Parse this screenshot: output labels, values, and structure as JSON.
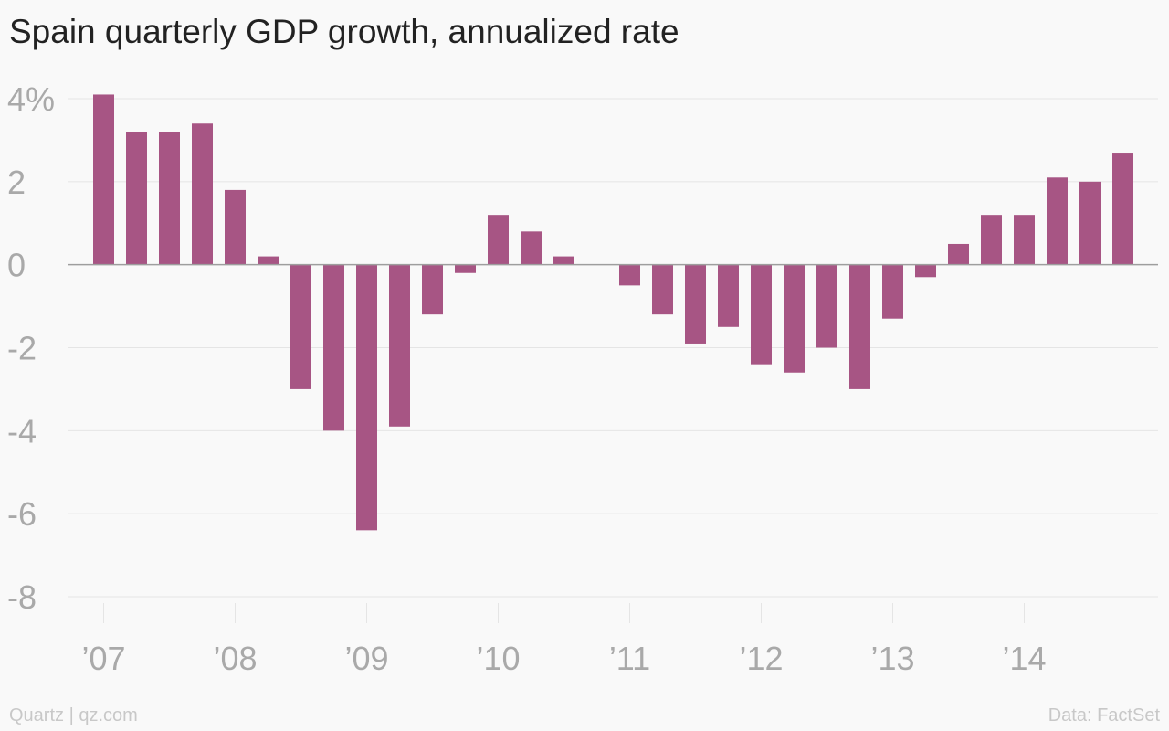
{
  "title": "Spain quarterly GDP growth, annualized rate",
  "source_left": "Quartz | qz.com",
  "source_right": "Data: FactSet",
  "colors": {
    "bar": "#a75584",
    "grid": "#e5e5e5",
    "zero_line": "#9e9e9e",
    "tick_label": "#a9a9a9",
    "title": "#222222",
    "background": "#f9f9f9"
  },
  "chart_data": {
    "type": "bar",
    "title": "Spain quarterly GDP growth, annualized rate",
    "xlabel": "",
    "ylabel": "",
    "ylim": [
      -8,
      4
    ],
    "y_ticks": [
      {
        "value": 4,
        "label": "4%"
      },
      {
        "value": 2,
        "label": "2"
      },
      {
        "value": 0,
        "label": "0"
      },
      {
        "value": -2,
        "label": "-2"
      },
      {
        "value": -4,
        "label": "-4"
      },
      {
        "value": -6,
        "label": "-6"
      },
      {
        "value": -8,
        "label": "-8"
      }
    ],
    "x_ticks": [
      "’07",
      "’08",
      "’09",
      "’10",
      "’11",
      "’12",
      "’13",
      "’14"
    ],
    "categories": [
      "2007 Q1",
      "2007 Q2",
      "2007 Q3",
      "2007 Q4",
      "2008 Q1",
      "2008 Q2",
      "2008 Q3",
      "2008 Q4",
      "2009 Q1",
      "2009 Q2",
      "2009 Q3",
      "2009 Q4",
      "2010 Q1",
      "2010 Q2",
      "2010 Q3",
      "2010 Q4",
      "2011 Q1",
      "2011 Q2",
      "2011 Q3",
      "2011 Q4",
      "2012 Q1",
      "2012 Q2",
      "2012 Q3",
      "2012 Q4",
      "2013 Q1",
      "2013 Q2",
      "2013 Q3",
      "2013 Q4",
      "2014 Q1",
      "2014 Q2",
      "2014 Q3",
      "2014 Q4"
    ],
    "values": [
      4.1,
      3.2,
      3.2,
      3.4,
      1.8,
      0.2,
      -3.0,
      -4.0,
      -6.4,
      -3.9,
      -1.2,
      -0.2,
      1.2,
      0.8,
      0.2,
      0.0,
      -0.5,
      -1.2,
      -1.9,
      -1.5,
      -2.4,
      -2.6,
      -2.0,
      -3.0,
      -1.3,
      -0.3,
      0.5,
      1.2,
      1.2,
      2.1,
      2.0,
      2.7
    ],
    "grid": true,
    "legend": "none"
  }
}
